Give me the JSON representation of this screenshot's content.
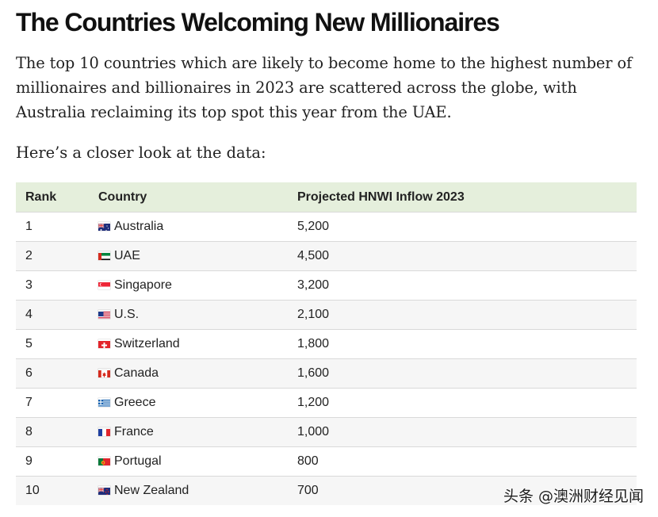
{
  "article": {
    "title": "The Countries Welcoming New Millionaires",
    "intro": "The top 10 countries which are likely to become home to the highest number of millionaires and billionaires in 2023 are scattered across the globe, with Australia reclaiming its top spot this year from the UAE.",
    "lead": "Here’s a closer look at the data:"
  },
  "table": {
    "headers": [
      "Rank",
      "Country",
      "Projected HNWI Inflow 2023"
    ],
    "rows": [
      {
        "rank": "1",
        "country": "Australia",
        "flag": "australia-flag-icon",
        "inflow": "5,200"
      },
      {
        "rank": "2",
        "country": "UAE",
        "flag": "uae-flag-icon",
        "inflow": "4,500"
      },
      {
        "rank": "3",
        "country": "Singapore",
        "flag": "singapore-flag-icon",
        "inflow": "3,200"
      },
      {
        "rank": "4",
        "country": "U.S.",
        "flag": "us-flag-icon",
        "inflow": "2,100"
      },
      {
        "rank": "5",
        "country": "Switzerland",
        "flag": "switzerland-flag-icon",
        "inflow": "1,800"
      },
      {
        "rank": "6",
        "country": "Canada",
        "flag": "canada-flag-icon",
        "inflow": "1,600"
      },
      {
        "rank": "7",
        "country": "Greece",
        "flag": "greece-flag-icon",
        "inflow": "1,200"
      },
      {
        "rank": "8",
        "country": "France",
        "flag": "france-flag-icon",
        "inflow": "1,000"
      },
      {
        "rank": "9",
        "country": "Portugal",
        "flag": "portugal-flag-icon",
        "inflow": "800"
      },
      {
        "rank": "10",
        "country": "New Zealand",
        "flag": "new-zealand-flag-icon",
        "inflow": "700"
      }
    ]
  },
  "watermark": "头条 @澳洲财经见闻",
  "colors": {
    "header_bg": "#e5efdc",
    "stripe_bg": "#f6f6f6",
    "text": "#222222"
  }
}
